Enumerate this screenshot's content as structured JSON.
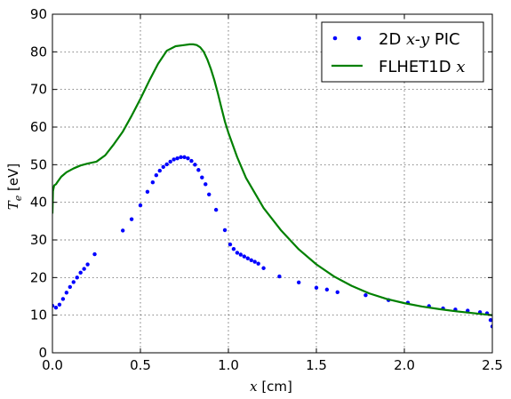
{
  "chart_data": {
    "type": "line",
    "xlabel": "x [cm]",
    "ylabel": "T_e [eV]",
    "xlim": [
      0,
      2.5
    ],
    "ylim": [
      0,
      90
    ],
    "x_ticks": [
      "0.0",
      "0.5",
      "1.0",
      "1.5",
      "2.0",
      "2.5"
    ],
    "y_ticks": [
      "0",
      "10",
      "20",
      "30",
      "40",
      "50",
      "60",
      "70",
      "80",
      "90"
    ],
    "grid": true,
    "legend_position": "top-right",
    "colors": {
      "pic": "#0000ff",
      "flhet": "#008000"
    },
    "series": [
      {
        "name": "2D x-y PIC",
        "style": "dots",
        "x": [
          0.0,
          0.02,
          0.04,
          0.06,
          0.08,
          0.1,
          0.12,
          0.14,
          0.16,
          0.18,
          0.2,
          0.24,
          0.4,
          0.45,
          0.5,
          0.54,
          0.57,
          0.59,
          0.61,
          0.63,
          0.65,
          0.67,
          0.69,
          0.71,
          0.73,
          0.75,
          0.77,
          0.79,
          0.81,
          0.83,
          0.85,
          0.87,
          0.89,
          0.93,
          0.98,
          1.01,
          1.03,
          1.05,
          1.07,
          1.09,
          1.11,
          1.13,
          1.15,
          1.17,
          1.2,
          1.29,
          1.4,
          1.5,
          1.56,
          1.62,
          1.78,
          1.91,
          2.02,
          2.14,
          2.22,
          2.29,
          2.36,
          2.43,
          2.47,
          2.49,
          2.5
        ],
        "y": [
          12.5,
          12.0,
          12.8,
          14.3,
          16.0,
          17.5,
          18.8,
          20.0,
          21.3,
          22.3,
          23.5,
          26.2,
          32.5,
          35.5,
          39.2,
          42.8,
          45.3,
          47.2,
          48.4,
          49.4,
          50.1,
          50.8,
          51.4,
          51.7,
          52.0,
          52.0,
          51.7,
          51.0,
          50.0,
          48.6,
          46.6,
          44.8,
          42.1,
          38.0,
          32.6,
          28.8,
          27.6,
          26.6,
          26.1,
          25.6,
          25.1,
          24.6,
          24.2,
          23.7,
          22.5,
          20.3,
          18.7,
          17.3,
          16.8,
          16.1,
          15.3,
          14.0,
          13.3,
          12.4,
          11.8,
          11.5,
          11.2,
          10.8,
          10.5,
          8.7,
          7.0
        ]
      },
      {
        "name": "FLHET1D x",
        "style": "line",
        "x": [
          0.0,
          0.003,
          0.01,
          0.02,
          0.03,
          0.05,
          0.08,
          0.12,
          0.16,
          0.2,
          0.25,
          0.3,
          0.35,
          0.4,
          0.45,
          0.5,
          0.55,
          0.6,
          0.65,
          0.7,
          0.75,
          0.78,
          0.8,
          0.82,
          0.84,
          0.86,
          0.88,
          0.9,
          0.92,
          0.94,
          0.96,
          0.98,
          1.0,
          1.05,
          1.1,
          1.2,
          1.3,
          1.4,
          1.5,
          1.6,
          1.7,
          1.8,
          1.9,
          2.0,
          2.1,
          2.2,
          2.3,
          2.4,
          2.5
        ],
        "y": [
          37.0,
          43.0,
          44.5,
          44.8,
          45.5,
          46.8,
          48.0,
          49.0,
          49.8,
          50.3,
          50.8,
          52.5,
          55.5,
          58.8,
          63.0,
          67.5,
          72.3,
          76.8,
          80.3,
          81.5,
          81.8,
          82.0,
          82.0,
          81.8,
          81.2,
          80.0,
          78.0,
          75.5,
          72.5,
          69.0,
          65.2,
          61.5,
          58.5,
          52.0,
          46.5,
          38.5,
          32.5,
          27.5,
          23.5,
          20.3,
          17.8,
          15.8,
          14.3,
          13.2,
          12.3,
          11.6,
          11.0,
          10.5,
          10.0
        ]
      }
    ]
  }
}
